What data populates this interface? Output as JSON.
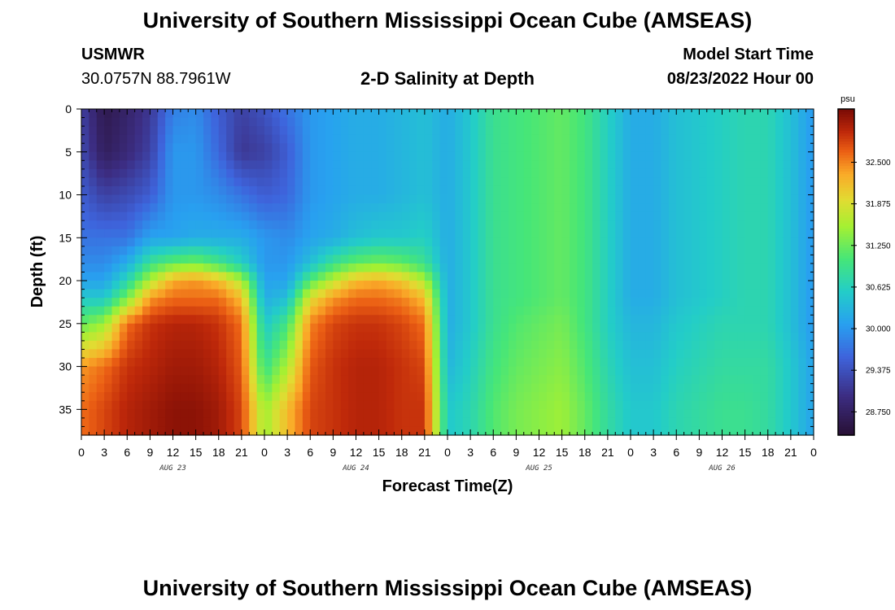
{
  "header": {
    "title": "University of Southern Mississippi Ocean Cube (AMSEAS)",
    "station": "USMWR",
    "coords": "30.0757N  88.7961W",
    "subtitle": "2-D Salinity at Depth",
    "start_label": "Model Start Time",
    "start_value": "08/23/2022 Hour 00"
  },
  "footer": {
    "title": "University of Southern Mississippi Ocean Cube (AMSEAS)"
  },
  "chart_data": {
    "type": "heatmap",
    "xlabel": "Forecast Time(Z)",
    "ylabel": "Depth (ft)",
    "x_range_hours": [
      0,
      96
    ],
    "x_tick_labels": [
      "0",
      "3",
      "6",
      "9",
      "12",
      "15",
      "18",
      "21",
      "0",
      "3",
      "6",
      "9",
      "12",
      "15",
      "18",
      "21",
      "0",
      "3",
      "6",
      "9",
      "12",
      "15",
      "18",
      "21",
      "0",
      "3",
      "6",
      "9",
      "12",
      "15",
      "18",
      "21",
      "0"
    ],
    "date_labels": [
      "AUG 23",
      "AUG 24",
      "AUG 25",
      "AUG 26"
    ],
    "y_range_ft": [
      0,
      38
    ],
    "y_ticks": [
      0,
      5,
      10,
      15,
      20,
      25,
      30,
      35
    ],
    "colorbar": {
      "unit": "psu",
      "range": [
        28.4,
        33.3
      ],
      "ticks": [
        "32.500",
        "31.875",
        "31.250",
        "30.625",
        "30.000",
        "29.375",
        "28.750"
      ]
    },
    "columns_salinity_by_depth": {
      "depths_ft": [
        0,
        5,
        10,
        15,
        18,
        20,
        22,
        25,
        30,
        35,
        38
      ],
      "profiles": [
        {
          "hour": 0,
          "values": [
            29.2,
            29.3,
            29.5,
            29.7,
            29.9,
            30.1,
            30.5,
            31.2,
            32.4,
            32.6,
            32.6
          ]
        },
        {
          "hour": 3,
          "values": [
            28.6,
            28.7,
            29.2,
            29.7,
            29.9,
            30.1,
            30.5,
            31.5,
            32.6,
            32.8,
            32.8
          ]
        },
        {
          "hour": 6,
          "values": [
            28.8,
            28.9,
            29.3,
            29.7,
            30.2,
            30.7,
            31.3,
            32.6,
            32.9,
            33.0,
            33.0
          ]
        },
        {
          "hour": 9,
          "values": [
            29.1,
            29.2,
            29.5,
            30.1,
            30.9,
            31.6,
            32.4,
            32.9,
            33.0,
            33.1,
            33.1
          ]
        },
        {
          "hour": 12,
          "values": [
            29.8,
            30.0,
            30.0,
            30.1,
            31.2,
            32.3,
            32.6,
            33.0,
            33.1,
            33.2,
            33.2
          ]
        },
        {
          "hour": 15,
          "values": [
            29.9,
            30.0,
            30.0,
            30.2,
            31.3,
            32.4,
            32.6,
            33.0,
            33.1,
            33.2,
            33.2
          ]
        },
        {
          "hour": 18,
          "values": [
            29.5,
            29.6,
            29.9,
            30.2,
            31.0,
            32.2,
            32.6,
            32.9,
            33.0,
            33.1,
            33.1
          ]
        },
        {
          "hour": 21,
          "values": [
            29.2,
            29.1,
            29.7,
            30.2,
            30.6,
            31.6,
            32.2,
            32.6,
            32.7,
            32.8,
            32.8
          ]
        },
        {
          "hour": 24,
          "values": [
            29.4,
            29.2,
            29.5,
            30.0,
            30.0,
            30.1,
            30.2,
            30.5,
            30.9,
            31.5,
            31.5
          ]
        },
        {
          "hour": 27,
          "values": [
            29.7,
            29.5,
            29.6,
            29.9,
            30.0,
            30.1,
            30.4,
            31.0,
            31.6,
            32.2,
            32.2
          ]
        },
        {
          "hour": 30,
          "values": [
            30.0,
            30.0,
            30.0,
            30.1,
            30.4,
            31.1,
            31.9,
            32.5,
            32.7,
            32.8,
            32.8
          ]
        },
        {
          "hour": 33,
          "values": [
            30.1,
            30.1,
            30.1,
            30.2,
            30.9,
            31.7,
            32.4,
            32.8,
            32.9,
            32.9,
            32.9
          ]
        },
        {
          "hour": 36,
          "values": [
            30.2,
            30.2,
            30.2,
            30.4,
            31.2,
            32.2,
            32.6,
            32.9,
            33.0,
            33.0,
            33.0
          ]
        },
        {
          "hour": 39,
          "values": [
            30.2,
            30.2,
            30.2,
            30.5,
            31.3,
            32.3,
            32.6,
            32.9,
            33.0,
            33.0,
            33.0
          ]
        },
        {
          "hour": 42,
          "values": [
            30.3,
            30.3,
            30.3,
            30.5,
            31.2,
            32.1,
            32.5,
            32.8,
            32.9,
            32.9,
            32.9
          ]
        },
        {
          "hour": 45,
          "values": [
            30.4,
            30.4,
            30.4,
            30.6,
            30.9,
            31.6,
            32.2,
            32.6,
            32.8,
            32.9,
            32.9
          ]
        },
        {
          "hour": 48,
          "values": [
            30.2,
            30.2,
            30.2,
            30.2,
            30.2,
            30.2,
            30.2,
            30.2,
            30.3,
            30.5,
            30.5
          ]
        },
        {
          "hour": 51,
          "values": [
            30.5,
            30.5,
            30.5,
            30.5,
            30.5,
            30.5,
            30.5,
            30.5,
            30.6,
            30.7,
            30.7
          ]
        },
        {
          "hour": 54,
          "values": [
            30.9,
            30.9,
            30.9,
            30.9,
            30.9,
            30.9,
            30.9,
            30.9,
            31.0,
            31.1,
            31.1
          ]
        },
        {
          "hour": 57,
          "values": [
            31.0,
            31.0,
            31.0,
            31.0,
            31.0,
            31.0,
            31.0,
            31.1,
            31.2,
            31.3,
            31.3
          ]
        },
        {
          "hour": 60,
          "values": [
            31.1,
            31.1,
            31.1,
            31.1,
            31.1,
            31.1,
            31.1,
            31.2,
            31.3,
            31.4,
            31.4
          ]
        },
        {
          "hour": 63,
          "values": [
            31.2,
            31.2,
            31.2,
            31.2,
            31.2,
            31.2,
            31.2,
            31.3,
            31.4,
            31.5,
            31.5
          ]
        },
        {
          "hour": 66,
          "values": [
            31.0,
            31.0,
            31.0,
            31.0,
            31.0,
            31.0,
            31.0,
            31.0,
            31.1,
            31.2,
            31.2
          ]
        },
        {
          "hour": 69,
          "values": [
            30.6,
            30.6,
            30.6,
            30.6,
            30.6,
            30.6,
            30.6,
            30.6,
            30.7,
            30.8,
            30.8
          ]
        },
        {
          "hour": 72,
          "values": [
            30.2,
            30.2,
            30.2,
            30.2,
            30.2,
            30.2,
            30.2,
            30.3,
            30.4,
            30.5,
            30.5
          ]
        },
        {
          "hour": 75,
          "values": [
            30.2,
            30.2,
            30.2,
            30.2,
            30.2,
            30.2,
            30.2,
            30.3,
            30.4,
            30.5,
            30.5
          ]
        },
        {
          "hour": 78,
          "values": [
            30.4,
            30.4,
            30.4,
            30.4,
            30.4,
            30.4,
            30.4,
            30.5,
            30.6,
            30.7,
            30.7
          ]
        },
        {
          "hour": 81,
          "values": [
            30.5,
            30.5,
            30.5,
            30.5,
            30.5,
            30.5,
            30.5,
            30.6,
            30.7,
            30.8,
            30.8
          ]
        },
        {
          "hour": 84,
          "values": [
            30.6,
            30.6,
            30.6,
            30.6,
            30.6,
            30.6,
            30.6,
            30.7,
            30.8,
            30.9,
            30.9
          ]
        },
        {
          "hour": 87,
          "values": [
            30.7,
            30.7,
            30.7,
            30.7,
            30.7,
            30.7,
            30.7,
            30.7,
            30.8,
            30.9,
            30.9
          ]
        },
        {
          "hour": 90,
          "values": [
            30.7,
            30.7,
            30.7,
            30.7,
            30.7,
            30.7,
            30.7,
            30.7,
            30.8,
            30.8,
            30.8
          ]
        },
        {
          "hour": 93,
          "values": [
            30.4,
            30.4,
            30.4,
            30.4,
            30.4,
            30.4,
            30.4,
            30.4,
            30.5,
            30.5,
            30.5
          ]
        },
        {
          "hour": 96,
          "values": [
            30.0,
            30.0,
            30.0,
            30.0,
            30.0,
            30.0,
            30.0,
            30.0,
            30.1,
            30.1,
            30.1
          ]
        }
      ]
    }
  }
}
